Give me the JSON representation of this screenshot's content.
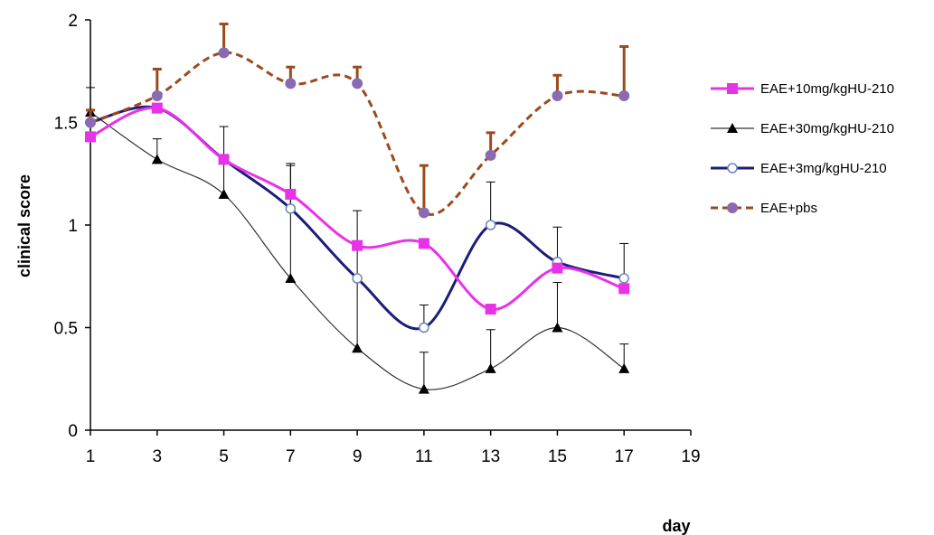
{
  "chart_data": {
    "type": "line",
    "xlabel": "day",
    "ylabel": "clinical score",
    "xlim": [
      1,
      19
    ],
    "ylim": [
      0,
      2
    ],
    "xticks": [
      "1",
      "3",
      "5",
      "7",
      "9",
      "11",
      "13",
      "15",
      "17",
      "19"
    ],
    "yticks": [
      "0",
      "0.5",
      "1",
      "1.5",
      "2"
    ],
    "grid": false,
    "legend_position": "right",
    "x": [
      1,
      3,
      5,
      7,
      9,
      11,
      13,
      15,
      17
    ],
    "series": [
      {
        "name": "EAE+10mg/kgHU-210",
        "color": "#e832e8",
        "marker": "square",
        "dash": "solid",
        "values": [
          1.43,
          1.57,
          1.32,
          1.15,
          0.9,
          0.91,
          0.59,
          0.79,
          0.69
        ],
        "errors": [
          null,
          null,
          null,
          null,
          null,
          null,
          null,
          null,
          null
        ]
      },
      {
        "name": "EAE+30mg/kgHU-210",
        "color": "#333333",
        "marker": "triangle",
        "dash": "solid",
        "values": [
          1.55,
          1.32,
          1.15,
          0.74,
          0.4,
          0.2,
          0.3,
          0.5,
          0.3
        ],
        "errors": [
          0.12,
          0.1,
          0.33,
          0.55,
          0.67,
          0.18,
          0.19,
          0.22,
          0.12
        ]
      },
      {
        "name": "EAE+3mg/kgHU-210",
        "color": "#1c1c7a",
        "marker": "circle-open",
        "dash": "solid",
        "values": [
          1.5,
          1.57,
          1.32,
          1.08,
          0.74,
          0.5,
          1.0,
          0.82,
          0.74
        ],
        "errors": [
          null,
          null,
          null,
          0.22,
          null,
          0.11,
          0.21,
          0.17,
          0.17
        ]
      },
      {
        "name": "EAE+pbs",
        "color": "#9b4a1e",
        "marker": "circle-filled",
        "marker_color": "#8a6ab0",
        "dash": "dashed",
        "values": [
          1.5,
          1.63,
          1.84,
          1.69,
          1.69,
          1.06,
          1.34,
          1.63,
          1.63
        ],
        "errors": [
          0.06,
          0.13,
          0.14,
          0.08,
          0.08,
          0.23,
          0.11,
          0.1,
          0.24
        ]
      }
    ]
  }
}
